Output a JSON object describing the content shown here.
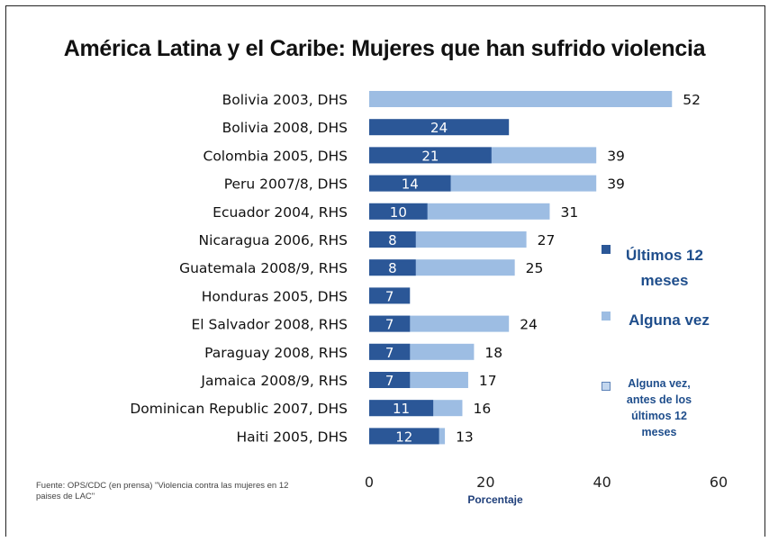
{
  "chart_data": {
    "type": "bar",
    "orientation": "horizontal",
    "stacked": "overlay",
    "title": "América Latina y el Caribe: Mujeres que han sufrido violencia",
    "xlabel": "Porcentaje",
    "ylabel": "",
    "xlim": [
      0,
      60
    ],
    "xticks": [
      "0",
      "20",
      "40",
      "60"
    ],
    "grid": false,
    "legend_position": "right",
    "categories": [
      "Bolivia 2003, DHS",
      "Bolivia 2008, DHS",
      "Colombia 2005, DHS",
      "Peru 2007/8, DHS",
      "Ecuador 2004, RHS",
      "Nicaragua 2006, RHS",
      "Guatemala 2008/9, RHS",
      "Honduras 2005, DHS",
      "El Salvador 2008, RHS",
      "Paraguay 2008, RHS",
      "Jamaica 2008/9, RHS",
      "Dominican Republic 2007, DHS",
      "Haiti 2005, DHS"
    ],
    "series": [
      {
        "name": "Últimos 12 meses",
        "color": "#2b5797",
        "values": [
          null,
          24,
          21,
          14,
          10,
          8,
          8,
          7,
          7,
          7,
          7,
          11,
          12
        ]
      },
      {
        "name": "Alguna vez",
        "color": "#9dbde3",
        "values": [
          52,
          null,
          39,
          39,
          31,
          27,
          25,
          null,
          24,
          18,
          17,
          16,
          13
        ]
      }
    ],
    "legend": {
      "item1": "Últimos 12 meses",
      "item2": "Alguna vez",
      "item3": "Alguna vez, antes de los últimos 12 meses"
    },
    "source_note": "Fuente: OPS/CDC (en prensa) \"Violencia contra las mujeres en 12 paises de LAC\""
  },
  "colors": {
    "dark_bar": "#2b5797",
    "light_bar": "#9dbde3",
    "label_text": "#111111",
    "axis": "#333333"
  }
}
